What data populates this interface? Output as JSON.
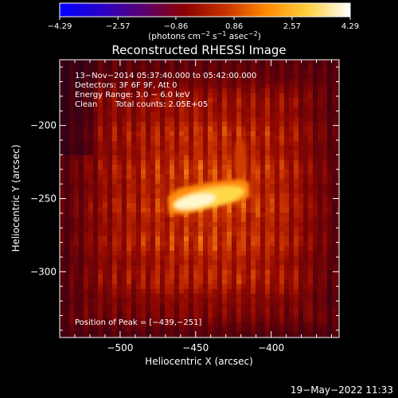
{
  "chart_data": {
    "type": "heatmap",
    "title": "Reconstructed RHESSI Image",
    "xlabel": "Heliocentric X (arcsec)",
    "ylabel": "Heliocentric Y (arcsec)",
    "xlim": [
      -540,
      -355
    ],
    "ylim": [
      -345,
      -155
    ],
    "x_ticks": [
      -500,
      -450,
      -400
    ],
    "y_ticks": [
      -200,
      -250,
      -300
    ],
    "x_tick_labels": [
      "−500",
      "−450",
      "−400"
    ],
    "y_tick_labels": [
      "−200",
      "−250",
      "−300"
    ],
    "colorbar": {
      "min": -4.29,
      "max": 4.29,
      "ticks": [
        -4.29,
        -2.57,
        -0.86,
        0.86,
        2.57,
        4.29
      ],
      "tick_labels": [
        "−4.29",
        "−2.57",
        "−0.86",
        "0.86",
        "2.57",
        "4.29"
      ],
      "label_main": "(photons cm",
      "label_sup1": "−2",
      "label_mid": " s",
      "label_sup2": "−1",
      "label_end1": " asec",
      "label_sup3": "−2",
      "label_end2": ")",
      "colors": [
        "#0000ff",
        "#2a00c8",
        "#5a0070",
        "#8a0000",
        "#c83200",
        "#ff8c00",
        "#ffd040",
        "#ffffff"
      ]
    },
    "info": {
      "line1": "13−Nov−2014 05:37:40.000 to 05:42:00.000",
      "line2": "Detectors: 3F 6F 9F, Att 0",
      "line3": "Energy Range: 3.0 − 6.0 keV",
      "line4a": "Clean",
      "line4b": "Total counts: 2.05E+05"
    },
    "peak_label": "Position of Peak = [−439,−251]",
    "peak": [
      -439,
      -251
    ]
  },
  "footer": {
    "timestamp": "19−May−2022 11:33"
  }
}
